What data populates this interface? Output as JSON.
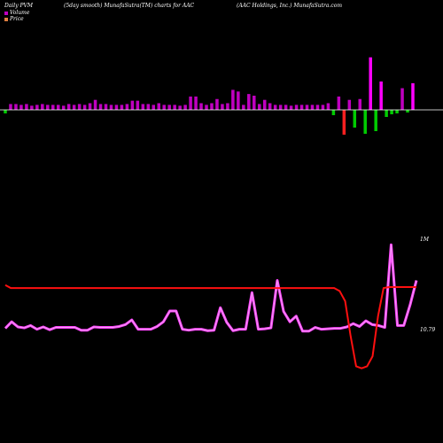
{
  "header": {
    "left": "Daily PVM",
    "middle": "(5day smooth) MunafaSutra(TM) charts for AAC",
    "right": "(AAC Holdings, Inc.) MunafaSutra.com"
  },
  "legend": {
    "volume": "Volume",
    "price": "Price"
  },
  "labels": {
    "volume_max": "1M",
    "price_last": "10.79"
  },
  "colors": {
    "background": "#000000",
    "up_bar": "#c000c0",
    "up_bar_bright": "#ff00ff",
    "down_bar": "#ff2020",
    "green_bar": "#00cc00",
    "volume_line": "#ff40ff",
    "price_line": "#ff1010",
    "baseline": "#ffffff",
    "volume_swatch": "#c000c0",
    "price_swatch": "#e08040"
  },
  "chart_data": [
    {
      "type": "bar",
      "name": "daily-change-bars",
      "baseline": 0,
      "ylim": [
        -29,
        68
      ],
      "values": [
        -4,
        7,
        7,
        6,
        7,
        5,
        6,
        7,
        6,
        6,
        6,
        5,
        7,
        6,
        7,
        6,
        8,
        12,
        7,
        7,
        6,
        6,
        6,
        7,
        11,
        11,
        7,
        7,
        6,
        8,
        6,
        6,
        6,
        5,
        6,
        16,
        16,
        8,
        6,
        8,
        13,
        7,
        8,
        24,
        22,
        6,
        19,
        17,
        7,
        12,
        8,
        6,
        6,
        6,
        5,
        6,
        6,
        6,
        6,
        6,
        6,
        8,
        -6,
        16,
        -28,
        12,
        -20,
        13,
        -27,
        63,
        -24,
        34,
        -8,
        -5,
        -4,
        26,
        -3,
        32
      ]
    },
    {
      "type": "line",
      "name": "volume-smoothed",
      "ylim": [
        0,
        1000000
      ],
      "values": [
        70000,
        140000,
        85000,
        75000,
        100000,
        60000,
        85000,
        55000,
        80000,
        80000,
        80000,
        80000,
        50000,
        50000,
        85000,
        80000,
        80000,
        80000,
        90000,
        110000,
        160000,
        60000,
        60000,
        60000,
        90000,
        140000,
        255000,
        255000,
        60000,
        50000,
        60000,
        60000,
        45000,
        50000,
        290000,
        135000,
        45000,
        60000,
        60000,
        450000,
        60000,
        65000,
        75000,
        580000,
        250000,
        140000,
        200000,
        40000,
        40000,
        80000,
        60000,
        65000,
        70000,
        70000,
        85000,
        120000,
        90000,
        150000,
        110000,
        100000,
        80000,
        960000,
        100000,
        100000,
        320000,
        580000
      ]
    },
    {
      "type": "line",
      "name": "price-smoothed",
      "ylim": [
        9.5,
        11.4
      ],
      "values": [
        10.81,
        10.78,
        10.78,
        10.78,
        10.78,
        10.78,
        10.78,
        10.78,
        10.78,
        10.78,
        10.78,
        10.78,
        10.78,
        10.78,
        10.78,
        10.78,
        10.78,
        10.78,
        10.78,
        10.78,
        10.78,
        10.78,
        10.78,
        10.78,
        10.78,
        10.78,
        10.78,
        10.78,
        10.78,
        10.78,
        10.78,
        10.78,
        10.78,
        10.78,
        10.78,
        10.78,
        10.78,
        10.78,
        10.78,
        10.78,
        10.78,
        10.78,
        10.78,
        10.78,
        10.78,
        10.78,
        10.78,
        10.78,
        10.78,
        10.78,
        10.78,
        10.78,
        10.78,
        10.78,
        10.78,
        10.78,
        10.78,
        10.78,
        10.78,
        10.78,
        10.78,
        10.75,
        10.65,
        10.3,
        10.0,
        9.98,
        10.0,
        10.1,
        10.5,
        10.78,
        10.79,
        10.79,
        10.79,
        10.79,
        10.79,
        10.79
      ]
    }
  ]
}
